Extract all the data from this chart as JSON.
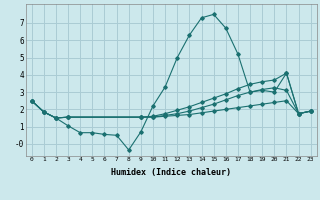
{
  "xlabel": "Humidex (Indice chaleur)",
  "background_color": "#cce8ec",
  "grid_color": "#aaccd4",
  "line_color": "#1a7070",
  "xlim": [
    -0.5,
    23.5
  ],
  "ylim": [
    -0.7,
    8.1
  ],
  "yticks": [
    0,
    1,
    2,
    3,
    4,
    5,
    6,
    7
  ],
  "ytick_labels": [
    "-0",
    "1",
    "2",
    "3",
    "4",
    "5",
    "6",
    "7"
  ],
  "xticks": [
    0,
    1,
    2,
    3,
    4,
    5,
    6,
    7,
    8,
    9,
    10,
    11,
    12,
    13,
    14,
    15,
    16,
    17,
    18,
    19,
    20,
    21,
    22,
    23
  ],
  "lines": [
    {
      "x": [
        0,
        1,
        2,
        3,
        4,
        5,
        6,
        7,
        8,
        9,
        10,
        11,
        12,
        13,
        14,
        15,
        16,
        17,
        18,
        19,
        20,
        21,
        22,
        23
      ],
      "y": [
        2.5,
        1.85,
        1.5,
        1.05,
        0.65,
        0.65,
        0.55,
        0.5,
        -0.35,
        0.7,
        2.2,
        3.3,
        5.0,
        6.3,
        7.3,
        7.5,
        6.7,
        5.2,
        3.0,
        3.1,
        3.0,
        4.1,
        1.75,
        1.9
      ]
    },
    {
      "x": [
        0,
        1,
        2,
        3,
        9,
        10,
        11,
        12,
        13,
        14,
        15,
        16,
        17,
        18,
        19,
        20,
        21,
        22,
        23
      ],
      "y": [
        2.5,
        1.85,
        1.5,
        1.55,
        1.55,
        1.6,
        1.75,
        1.95,
        2.15,
        2.4,
        2.65,
        2.9,
        3.2,
        3.45,
        3.6,
        3.7,
        4.1,
        1.75,
        1.9
      ]
    },
    {
      "x": [
        0,
        1,
        2,
        3,
        9,
        10,
        11,
        12,
        13,
        14,
        15,
        16,
        17,
        18,
        19,
        20,
        21,
        22,
        23
      ],
      "y": [
        2.5,
        1.85,
        1.5,
        1.55,
        1.55,
        1.55,
        1.65,
        1.75,
        1.9,
        2.1,
        2.3,
        2.55,
        2.8,
        3.0,
        3.15,
        3.25,
        3.1,
        1.75,
        1.9
      ]
    },
    {
      "x": [
        0,
        1,
        2,
        3,
        9,
        10,
        11,
        12,
        13,
        14,
        15,
        16,
        17,
        18,
        19,
        20,
        21,
        22,
        23
      ],
      "y": [
        2.5,
        1.85,
        1.5,
        1.55,
        1.55,
        1.55,
        1.6,
        1.65,
        1.7,
        1.8,
        1.9,
        2.0,
        2.1,
        2.2,
        2.3,
        2.4,
        2.5,
        1.75,
        1.9
      ]
    }
  ]
}
